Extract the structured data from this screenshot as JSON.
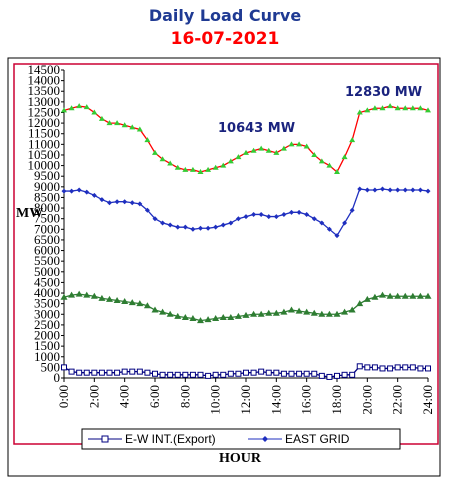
{
  "chart_data": {
    "type": "line",
    "title": "Daily Load Curve",
    "subtitle": "16-07-2021",
    "xlabel": "HOUR",
    "ylabel": "MW",
    "xlim": [
      0,
      24
    ],
    "ylim": [
      0,
      14500
    ],
    "x_ticks": [
      "0:00",
      "2:00",
      "4:00",
      "6:00",
      "8:00",
      "10:00",
      "12:00",
      "14:00",
      "16:00",
      "18:00",
      "20:00",
      "22:00",
      "24:00"
    ],
    "y_ticks": [
      0,
      500,
      1000,
      1500,
      2000,
      2500,
      3000,
      3500,
      4000,
      4500,
      5000,
      5500,
      6000,
      6500,
      7000,
      7500,
      8000,
      8500,
      9000,
      9500,
      10000,
      10500,
      11000,
      11500,
      12000,
      12500,
      13000,
      13500,
      14000,
      14500
    ],
    "x": [
      0,
      0.5,
      1,
      1.5,
      2,
      2.5,
      3,
      3.5,
      4,
      4.5,
      5,
      5.5,
      6,
      6.5,
      7,
      7.5,
      8,
      8.5,
      9,
      9.5,
      10,
      10.5,
      11,
      11.5,
      12,
      12.5,
      13,
      13.5,
      14,
      14.5,
      15,
      15.5,
      16,
      16.5,
      17,
      17.5,
      18,
      18.5,
      19,
      19.5,
      20,
      20.5,
      21,
      21.5,
      22,
      22.5,
      23,
      23.5,
      24
    ],
    "series": [
      {
        "name": "",
        "color": "#ff0000",
        "marker_color": "#33cc33",
        "values": [
          12600,
          12700,
          12800,
          12750,
          12500,
          12200,
          12000,
          12000,
          11900,
          11800,
          11700,
          11200,
          10600,
          10300,
          10100,
          9900,
          9800,
          9800,
          9700,
          9800,
          9900,
          10000,
          10200,
          10400,
          10600,
          10700,
          10800,
          10700,
          10600,
          10800,
          11000,
          11000,
          10900,
          10500,
          10200,
          10000,
          9700,
          10400,
          11200,
          12500,
          12600,
          12700,
          12700,
          12800,
          12700,
          12700,
          12700,
          12700,
          12600
        ]
      },
      {
        "name": "",
        "color": "#2e7d32",
        "marker_color": "#2e7d32",
        "values": [
          3800,
          3900,
          3950,
          3900,
          3850,
          3750,
          3700,
          3650,
          3600,
          3550,
          3500,
          3400,
          3200,
          3100,
          3000,
          2900,
          2850,
          2800,
          2700,
          2750,
          2800,
          2850,
          2850,
          2900,
          2950,
          3000,
          3000,
          3050,
          3050,
          3100,
          3200,
          3150,
          3100,
          3050,
          3000,
          3000,
          3000,
          3100,
          3200,
          3500,
          3700,
          3800,
          3900,
          3850,
          3850,
          3850,
          3850,
          3850,
          3850
        ]
      },
      {
        "name": "EAST GRID",
        "color": "#1f2fbf",
        "marker_color": "#1f2fbf",
        "values": [
          8800,
          8800,
          8850,
          8750,
          8600,
          8400,
          8250,
          8300,
          8300,
          8250,
          8200,
          7900,
          7500,
          7300,
          7200,
          7100,
          7100,
          7000,
          7050,
          7050,
          7100,
          7200,
          7300,
          7500,
          7600,
          7700,
          7700,
          7600,
          7600,
          7700,
          7800,
          7800,
          7700,
          7500,
          7300,
          7000,
          6700,
          7300,
          7900,
          8900,
          8850,
          8850,
          8900,
          8850,
          8850,
          8850,
          8850,
          8850,
          8800
        ]
      },
      {
        "name": "E-W INT.(Export)",
        "color": "#000080",
        "marker_color": "#000080",
        "values": [
          500,
          300,
          250,
          250,
          250,
          250,
          250,
          250,
          300,
          300,
          300,
          250,
          200,
          150,
          150,
          150,
          150,
          150,
          150,
          100,
          150,
          150,
          200,
          200,
          250,
          250,
          300,
          250,
          250,
          200,
          200,
          200,
          200,
          200,
          100,
          50,
          100,
          150,
          150,
          550,
          500,
          500,
          450,
          450,
          500,
          500,
          500,
          450,
          450
        ]
      }
    ],
    "annotations": [
      {
        "text": "12830 MW",
        "x": 21,
        "y": 12830
      },
      {
        "text": "10643 MW",
        "x": 13,
        "y": 10643
      }
    ],
    "legend": {
      "placement": "bottom",
      "entries": [
        "E-W INT.(Export)",
        "EAST GRID"
      ]
    },
    "grid": false,
    "colors": {
      "plot_border": "#cc0033",
      "title": "#1f3a93",
      "subtitle": "#ff0000"
    }
  }
}
